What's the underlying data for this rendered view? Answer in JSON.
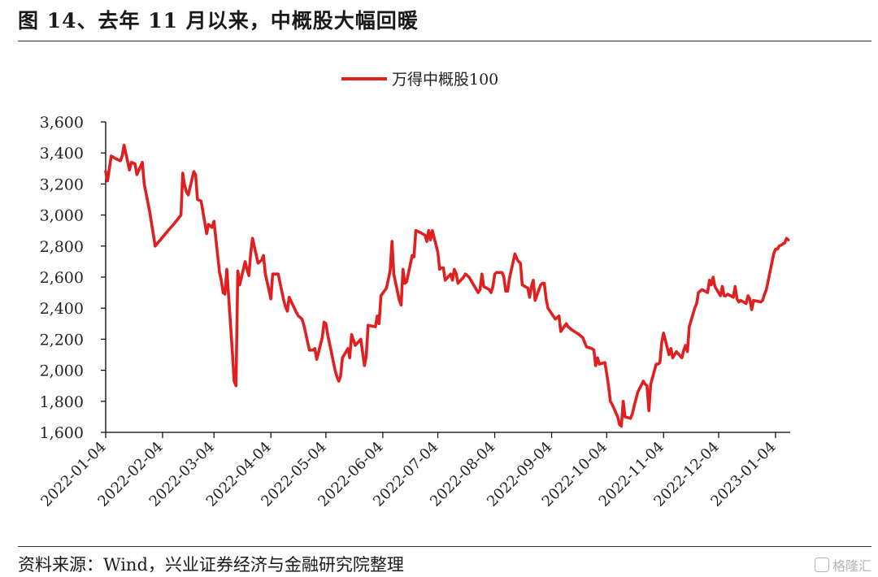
{
  "header": {
    "title": "图 14、去年 11 月以来，中概股大幅回暖"
  },
  "footer": {
    "source": "资料来源：Wind，兴业证券经济与金融研究院整理",
    "watermark": "格隆汇"
  },
  "colors": {
    "series": "#e02020",
    "axis": "#000000"
  },
  "chart_data": {
    "type": "line",
    "title": "",
    "xlabel": "",
    "ylabel": "",
    "ylim": [
      1600,
      3600
    ],
    "yticks": [
      1600,
      1800,
      2000,
      2200,
      2400,
      2600,
      2800,
      3000,
      3200,
      3400,
      3600
    ],
    "ytick_labels": [
      "1,600",
      "1,800",
      "2,000",
      "2,200",
      "2,400",
      "2,600",
      "2,800",
      "3,000",
      "3,200",
      "3,400",
      "3,600"
    ],
    "xticks": [
      "2022-01-04",
      "2022-02-04",
      "2022-03-04",
      "2022-04-04",
      "2022-05-04",
      "2022-06-04",
      "2022-07-04",
      "2022-08-04",
      "2022-09-04",
      "2022-10-04",
      "2022-11-04",
      "2022-12-04",
      "2023-01-04"
    ],
    "xlim": [
      "2022-01-04",
      "2023-01-12"
    ],
    "legend": "top-center",
    "grid": false,
    "series": [
      {
        "name": "万得中概股100",
        "points": [
          [
            "2022-01-04",
            3280
          ],
          [
            "2022-01-05",
            3220
          ],
          [
            "2022-01-06",
            3300
          ],
          [
            "2022-01-07",
            3380
          ],
          [
            "2022-01-10",
            3360
          ],
          [
            "2022-01-12",
            3350
          ],
          [
            "2022-01-13",
            3380
          ],
          [
            "2022-01-14",
            3450
          ],
          [
            "2022-01-17",
            3290
          ],
          [
            "2022-01-18",
            3340
          ],
          [
            "2022-01-20",
            3330
          ],
          [
            "2022-01-21",
            3260
          ],
          [
            "2022-01-24",
            3340
          ],
          [
            "2022-01-25",
            3200
          ],
          [
            "2022-01-28",
            3020
          ],
          [
            "2022-01-31",
            2800
          ],
          [
            "2022-02-07",
            2900
          ],
          [
            "2022-02-10",
            2940
          ],
          [
            "2022-02-14",
            3000
          ],
          [
            "2022-02-15",
            3270
          ],
          [
            "2022-02-16",
            3190
          ],
          [
            "2022-02-17",
            3150
          ],
          [
            "2022-02-18",
            3130
          ],
          [
            "2022-02-21",
            3280
          ],
          [
            "2022-02-22",
            3260
          ],
          [
            "2022-02-23",
            3100
          ],
          [
            "2022-02-25",
            3090
          ],
          [
            "2022-02-28",
            2880
          ],
          [
            "2022-03-01",
            2940
          ],
          [
            "2022-03-03",
            2920
          ],
          [
            "2022-03-04",
            2960
          ],
          [
            "2022-03-07",
            2630
          ],
          [
            "2022-03-08",
            2580
          ],
          [
            "2022-03-09",
            2500
          ],
          [
            "2022-03-10",
            2490
          ],
          [
            "2022-03-11",
            2650
          ],
          [
            "2022-03-14",
            2120
          ],
          [
            "2022-03-15",
            1930
          ],
          [
            "2022-03-16",
            1900
          ],
          [
            "2022-03-17",
            2640
          ],
          [
            "2022-03-18",
            2550
          ],
          [
            "2022-03-21",
            2700
          ],
          [
            "2022-03-22",
            2650
          ],
          [
            "2022-03-23",
            2610
          ],
          [
            "2022-03-24",
            2750
          ],
          [
            "2022-03-25",
            2850
          ],
          [
            "2022-03-28",
            2690
          ],
          [
            "2022-03-29",
            2700
          ],
          [
            "2022-03-30",
            2710
          ],
          [
            "2022-03-31",
            2740
          ],
          [
            "2022-04-01",
            2620
          ],
          [
            "2022-04-04",
            2460
          ],
          [
            "2022-04-05",
            2620
          ],
          [
            "2022-04-06",
            2620
          ],
          [
            "2022-04-08",
            2620
          ],
          [
            "2022-04-11",
            2450
          ],
          [
            "2022-04-12",
            2410
          ],
          [
            "2022-04-13",
            2380
          ],
          [
            "2022-04-14",
            2470
          ],
          [
            "2022-04-18",
            2370
          ],
          [
            "2022-04-19",
            2350
          ],
          [
            "2022-04-21",
            2330
          ],
          [
            "2022-04-22",
            2290
          ],
          [
            "2022-04-25",
            2130
          ],
          [
            "2022-04-27",
            2130
          ],
          [
            "2022-04-28",
            2140
          ],
          [
            "2022-04-29",
            2070
          ],
          [
            "2022-05-02",
            2210
          ],
          [
            "2022-05-03",
            2310
          ],
          [
            "2022-05-04",
            2300
          ],
          [
            "2022-05-05",
            2230
          ],
          [
            "2022-05-09",
            2000
          ],
          [
            "2022-05-10",
            1960
          ],
          [
            "2022-05-11",
            1930
          ],
          [
            "2022-05-12",
            1960
          ],
          [
            "2022-05-13",
            2080
          ],
          [
            "2022-05-16",
            2140
          ],
          [
            "2022-05-17",
            2080
          ],
          [
            "2022-05-18",
            2230
          ],
          [
            "2022-05-20",
            2160
          ],
          [
            "2022-05-23",
            2200
          ],
          [
            "2022-05-25",
            2030
          ],
          [
            "2022-05-26",
            2090
          ],
          [
            "2022-05-27",
            2290
          ],
          [
            "2022-05-31",
            2280
          ],
          [
            "2022-06-01",
            2350
          ],
          [
            "2022-06-02",
            2300
          ],
          [
            "2022-06-03",
            2480
          ],
          [
            "2022-06-06",
            2530
          ],
          [
            "2022-06-08",
            2640
          ],
          [
            "2022-06-09",
            2830
          ],
          [
            "2022-06-10",
            2620
          ],
          [
            "2022-06-13",
            2450
          ],
          [
            "2022-06-14",
            2420
          ],
          [
            "2022-06-15",
            2650
          ],
          [
            "2022-06-16",
            2560
          ],
          [
            "2022-06-17",
            2570
          ],
          [
            "2022-06-20",
            2740
          ],
          [
            "2022-06-21",
            2730
          ],
          [
            "2022-06-22",
            2900
          ],
          [
            "2022-06-24",
            2890
          ],
          [
            "2022-06-27",
            2870
          ],
          [
            "2022-06-28",
            2830
          ],
          [
            "2022-06-29",
            2900
          ],
          [
            "2022-06-30",
            2840
          ],
          [
            "2022-07-01",
            2900
          ],
          [
            "2022-07-04",
            2760
          ],
          [
            "2022-07-05",
            2650
          ],
          [
            "2022-07-06",
            2660
          ],
          [
            "2022-07-07",
            2660
          ],
          [
            "2022-07-08",
            2580
          ],
          [
            "2022-07-11",
            2620
          ],
          [
            "2022-07-12",
            2580
          ],
          [
            "2022-07-13",
            2650
          ],
          [
            "2022-07-14",
            2620
          ],
          [
            "2022-07-15",
            2560
          ],
          [
            "2022-07-18",
            2600
          ],
          [
            "2022-07-19",
            2620
          ],
          [
            "2022-07-21",
            2600
          ],
          [
            "2022-07-22",
            2580
          ],
          [
            "2022-07-25",
            2520
          ],
          [
            "2022-07-26",
            2500
          ],
          [
            "2022-07-27",
            2520
          ],
          [
            "2022-07-28",
            2620
          ],
          [
            "2022-07-29",
            2540
          ],
          [
            "2022-08-01",
            2520
          ],
          [
            "2022-08-02",
            2500
          ],
          [
            "2022-08-03",
            2540
          ],
          [
            "2022-08-04",
            2620
          ],
          [
            "2022-08-05",
            2630
          ],
          [
            "2022-08-08",
            2630
          ],
          [
            "2022-08-09",
            2600
          ],
          [
            "2022-08-10",
            2510
          ],
          [
            "2022-08-11",
            2510
          ],
          [
            "2022-08-12",
            2590
          ],
          [
            "2022-08-15",
            2750
          ],
          [
            "2022-08-16",
            2720
          ],
          [
            "2022-08-17",
            2700
          ],
          [
            "2022-08-18",
            2690
          ],
          [
            "2022-08-19",
            2550
          ],
          [
            "2022-08-22",
            2530
          ],
          [
            "2022-08-23",
            2470
          ],
          [
            "2022-08-24",
            2540
          ],
          [
            "2022-08-25",
            2580
          ],
          [
            "2022-08-26",
            2450
          ],
          [
            "2022-08-29",
            2550
          ],
          [
            "2022-08-30",
            2560
          ],
          [
            "2022-08-31",
            2560
          ],
          [
            "2022-09-01",
            2460
          ],
          [
            "2022-09-02",
            2400
          ],
          [
            "2022-09-06",
            2330
          ],
          [
            "2022-09-07",
            2340
          ],
          [
            "2022-09-08",
            2350
          ],
          [
            "2022-09-09",
            2250
          ],
          [
            "2022-09-12",
            2300
          ],
          [
            "2022-09-13",
            2280
          ],
          [
            "2022-09-15",
            2260
          ],
          [
            "2022-09-19",
            2230
          ],
          [
            "2022-09-21",
            2210
          ],
          [
            "2022-09-23",
            2150
          ],
          [
            "2022-09-26",
            2140
          ],
          [
            "2022-09-27",
            2130
          ],
          [
            "2022-09-28",
            2030
          ],
          [
            "2022-09-29",
            2080
          ],
          [
            "2022-09-30",
            2040
          ],
          [
            "2022-10-03",
            2050
          ],
          [
            "2022-10-04",
            1980
          ],
          [
            "2022-10-05",
            1900
          ],
          [
            "2022-10-06",
            1800
          ],
          [
            "2022-10-07",
            1780
          ],
          [
            "2022-10-10",
            1700
          ],
          [
            "2022-10-11",
            1650
          ],
          [
            "2022-10-12",
            1640
          ],
          [
            "2022-10-13",
            1800
          ],
          [
            "2022-10-14",
            1700
          ],
          [
            "2022-10-17",
            1690
          ],
          [
            "2022-10-18",
            1720
          ],
          [
            "2022-10-19",
            1770
          ],
          [
            "2022-10-21",
            1860
          ],
          [
            "2022-10-24",
            1930
          ],
          [
            "2022-10-25",
            1910
          ],
          [
            "2022-10-26",
            1900
          ],
          [
            "2022-10-27",
            1740
          ],
          [
            "2022-10-28",
            1910
          ],
          [
            "2022-10-31",
            2040
          ],
          [
            "2022-11-01",
            2040
          ],
          [
            "2022-11-02",
            2050
          ],
          [
            "2022-11-03",
            2180
          ],
          [
            "2022-11-04",
            2240
          ],
          [
            "2022-11-07",
            2100
          ],
          [
            "2022-11-08",
            2140
          ],
          [
            "2022-11-09",
            2080
          ],
          [
            "2022-11-10",
            2100
          ],
          [
            "2022-11-11",
            2120
          ],
          [
            "2022-11-14",
            2080
          ],
          [
            "2022-11-15",
            2130
          ],
          [
            "2022-11-16",
            2160
          ],
          [
            "2022-11-17",
            2120
          ],
          [
            "2022-11-18",
            2280
          ],
          [
            "2022-11-21",
            2400
          ],
          [
            "2022-11-22",
            2430
          ],
          [
            "2022-11-23",
            2500
          ],
          [
            "2022-11-25",
            2520
          ],
          [
            "2022-11-28",
            2500
          ],
          [
            "2022-11-29",
            2580
          ],
          [
            "2022-11-30",
            2550
          ],
          [
            "2022-12-01",
            2600
          ],
          [
            "2022-12-02",
            2540
          ],
          [
            "2022-12-05",
            2480
          ],
          [
            "2022-12-06",
            2540
          ],
          [
            "2022-12-07",
            2480
          ],
          [
            "2022-12-08",
            2480
          ],
          [
            "2022-12-09",
            2490
          ],
          [
            "2022-12-12",
            2470
          ],
          [
            "2022-12-13",
            2540
          ],
          [
            "2022-12-14",
            2460
          ],
          [
            "2022-12-15",
            2440
          ],
          [
            "2022-12-16",
            2450
          ],
          [
            "2022-12-19",
            2430
          ],
          [
            "2022-12-20",
            2480
          ],
          [
            "2022-12-21",
            2460
          ],
          [
            "2022-12-22",
            2390
          ],
          [
            "2022-12-23",
            2450
          ],
          [
            "2022-12-27",
            2440
          ],
          [
            "2022-12-28",
            2450
          ],
          [
            "2022-12-29",
            2490
          ],
          [
            "2022-12-30",
            2520
          ],
          [
            "2023-01-03",
            2750
          ],
          [
            "2023-01-04",
            2780
          ],
          [
            "2023-01-05",
            2780
          ],
          [
            "2023-01-06",
            2800
          ],
          [
            "2023-01-09",
            2820
          ],
          [
            "2023-01-10",
            2850
          ],
          [
            "2023-01-11",
            2840
          ]
        ]
      }
    ]
  }
}
